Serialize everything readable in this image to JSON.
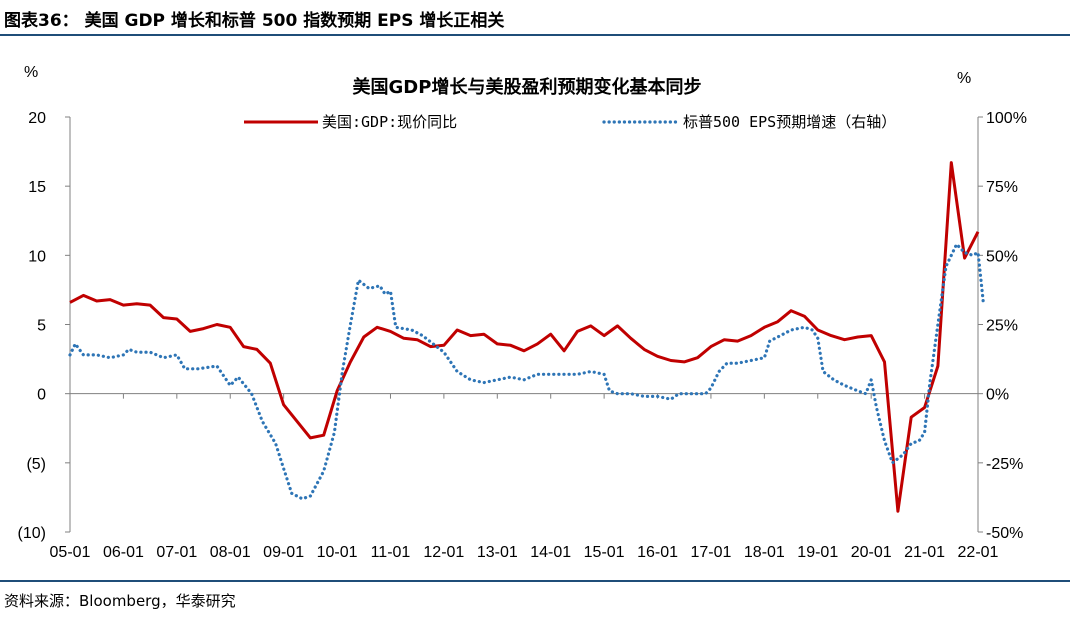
{
  "figure_header": "图表36： 美国 GDP 增长和标普 500 指数预期 EPS 增长正相关",
  "source_note": "资料来源：Bloomberg，华泰研究",
  "chart_data": {
    "type": "line",
    "title": "美国GDP增长与美股盈利预期变化基本同步",
    "left_unit": "%",
    "right_unit": "%",
    "left_axis": {
      "ylim": [
        -10,
        20
      ],
      "ticks": [
        20,
        15,
        10,
        5,
        0,
        -5,
        -10
      ],
      "tick_labels": [
        "20",
        "15",
        "10",
        "5",
        "0",
        "(5)",
        "(10)"
      ]
    },
    "right_axis": {
      "ylim": [
        -50,
        100
      ],
      "ticks": [
        100,
        75,
        50,
        25,
        0,
        -25,
        -50
      ],
      "tick_labels": [
        "100%",
        "75%",
        "50%",
        "25%",
        "0%",
        "-25%",
        "-50%"
      ]
    },
    "x_axis": {
      "range": [
        2005.0,
        2022.0
      ],
      "ticks": [
        2005,
        2006,
        2007,
        2008,
        2009,
        2010,
        2011,
        2012,
        2013,
        2014,
        2015,
        2016,
        2017,
        2018,
        2019,
        2020,
        2021,
        2022
      ],
      "tick_labels": [
        "05-01",
        "06-01",
        "07-01",
        "08-01",
        "09-01",
        "10-01",
        "11-01",
        "12-01",
        "13-01",
        "14-01",
        "15-01",
        "16-01",
        "17-01",
        "18-01",
        "19-01",
        "20-01",
        "21-01",
        "22-01"
      ]
    },
    "legend_position": "top",
    "series": [
      {
        "name": "美国:GDP:现价同比",
        "axis": "left",
        "color": "#c00000",
        "style": "solid",
        "points": [
          [
            2005.0,
            6.6
          ],
          [
            2005.25,
            7.1
          ],
          [
            2005.5,
            6.7
          ],
          [
            2005.75,
            6.8
          ],
          [
            2006.0,
            6.4
          ],
          [
            2006.25,
            6.5
          ],
          [
            2006.5,
            6.4
          ],
          [
            2006.75,
            5.5
          ],
          [
            2007.0,
            5.4
          ],
          [
            2007.25,
            4.5
          ],
          [
            2007.5,
            4.7
          ],
          [
            2007.75,
            5.0
          ],
          [
            2008.0,
            4.8
          ],
          [
            2008.25,
            3.4
          ],
          [
            2008.5,
            3.2
          ],
          [
            2008.75,
            2.2
          ],
          [
            2009.0,
            -0.8
          ],
          [
            2009.25,
            -2.0
          ],
          [
            2009.5,
            -3.2
          ],
          [
            2009.75,
            -3.0
          ],
          [
            2010.0,
            0.2
          ],
          [
            2010.25,
            2.3
          ],
          [
            2010.5,
            4.1
          ],
          [
            2010.75,
            4.8
          ],
          [
            2011.0,
            4.5
          ],
          [
            2011.25,
            4.0
          ],
          [
            2011.5,
            3.9
          ],
          [
            2011.75,
            3.4
          ],
          [
            2012.0,
            3.5
          ],
          [
            2012.25,
            4.6
          ],
          [
            2012.5,
            4.2
          ],
          [
            2012.75,
            4.3
          ],
          [
            2013.0,
            3.6
          ],
          [
            2013.25,
            3.5
          ],
          [
            2013.5,
            3.1
          ],
          [
            2013.75,
            3.6
          ],
          [
            2014.0,
            4.3
          ],
          [
            2014.25,
            3.1
          ],
          [
            2014.5,
            4.5
          ],
          [
            2014.75,
            4.9
          ],
          [
            2015.0,
            4.2
          ],
          [
            2015.25,
            4.9
          ],
          [
            2015.5,
            4.0
          ],
          [
            2015.75,
            3.2
          ],
          [
            2016.0,
            2.7
          ],
          [
            2016.25,
            2.4
          ],
          [
            2016.5,
            2.3
          ],
          [
            2016.75,
            2.6
          ],
          [
            2017.0,
            3.4
          ],
          [
            2017.25,
            3.9
          ],
          [
            2017.5,
            3.8
          ],
          [
            2017.75,
            4.2
          ],
          [
            2018.0,
            4.8
          ],
          [
            2018.25,
            5.2
          ],
          [
            2018.5,
            6.0
          ],
          [
            2018.75,
            5.6
          ],
          [
            2019.0,
            4.6
          ],
          [
            2019.25,
            4.2
          ],
          [
            2019.5,
            3.9
          ],
          [
            2019.75,
            4.1
          ],
          [
            2020.0,
            4.2
          ],
          [
            2020.25,
            2.3
          ],
          [
            2020.5,
            -8.5
          ],
          [
            2020.75,
            -1.7
          ],
          [
            2021.0,
            -1.0
          ],
          [
            2021.25,
            2.0
          ],
          [
            2021.5,
            16.7
          ],
          [
            2021.75,
            9.8
          ],
          [
            2022.0,
            11.7
          ]
        ]
      },
      {
        "name": "标普500 EPS预期增速（右轴）",
        "axis": "right",
        "color": "#2e75b6",
        "style": "dotted",
        "points": [
          [
            2005.0,
            14
          ],
          [
            2005.1,
            18
          ],
          [
            2005.25,
            14
          ],
          [
            2005.5,
            14
          ],
          [
            2005.75,
            13
          ],
          [
            2006.0,
            14
          ],
          [
            2006.1,
            16
          ],
          [
            2006.25,
            15
          ],
          [
            2006.5,
            15
          ],
          [
            2006.75,
            13
          ],
          [
            2007.0,
            14
          ],
          [
            2007.15,
            9
          ],
          [
            2007.4,
            9
          ],
          [
            2007.75,
            10
          ],
          [
            2008.0,
            3
          ],
          [
            2008.15,
            6
          ],
          [
            2008.4,
            0
          ],
          [
            2008.6,
            -10
          ],
          [
            2008.85,
            -18
          ],
          [
            2009.0,
            -27
          ],
          [
            2009.15,
            -36
          ],
          [
            2009.35,
            -38
          ],
          [
            2009.5,
            -37
          ],
          [
            2009.75,
            -28
          ],
          [
            2009.95,
            -14
          ],
          [
            2010.1,
            8
          ],
          [
            2010.25,
            25
          ],
          [
            2010.4,
            41
          ],
          [
            2010.6,
            38
          ],
          [
            2010.8,
            39
          ],
          [
            2010.9,
            36
          ],
          [
            2011.0,
            37
          ],
          [
            2011.1,
            24
          ],
          [
            2011.4,
            23
          ],
          [
            2011.6,
            21
          ],
          [
            2011.8,
            18
          ],
          [
            2012.0,
            15
          ],
          [
            2012.25,
            8
          ],
          [
            2012.5,
            5
          ],
          [
            2012.75,
            4
          ],
          [
            2013.0,
            5
          ],
          [
            2013.25,
            6
          ],
          [
            2013.5,
            5
          ],
          [
            2013.75,
            7
          ],
          [
            2014.0,
            7
          ],
          [
            2014.25,
            7
          ],
          [
            2014.5,
            7
          ],
          [
            2014.75,
            8
          ],
          [
            2015.0,
            7
          ],
          [
            2015.1,
            1
          ],
          [
            2015.25,
            0
          ],
          [
            2015.5,
            0
          ],
          [
            2015.75,
            -1
          ],
          [
            2016.0,
            -1
          ],
          [
            2016.25,
            -2
          ],
          [
            2016.4,
            0
          ],
          [
            2016.6,
            0
          ],
          [
            2016.75,
            0
          ],
          [
            2016.9,
            0
          ],
          [
            2017.0,
            2
          ],
          [
            2017.15,
            8
          ],
          [
            2017.3,
            11
          ],
          [
            2017.5,
            11
          ],
          [
            2017.75,
            12
          ],
          [
            2018.0,
            13
          ],
          [
            2018.1,
            19
          ],
          [
            2018.3,
            21
          ],
          [
            2018.5,
            23
          ],
          [
            2018.75,
            24
          ],
          [
            2018.9,
            23
          ],
          [
            2019.0,
            20
          ],
          [
            2019.1,
            8
          ],
          [
            2019.3,
            5
          ],
          [
            2019.5,
            3
          ],
          [
            2019.75,
            1
          ],
          [
            2019.9,
            0
          ],
          [
            2020.0,
            5
          ],
          [
            2020.1,
            -5
          ],
          [
            2020.25,
            -17
          ],
          [
            2020.4,
            -25
          ],
          [
            2020.6,
            -22
          ],
          [
            2020.75,
            -18
          ],
          [
            2020.9,
            -17
          ],
          [
            2021.0,
            -14
          ],
          [
            2021.1,
            4
          ],
          [
            2021.25,
            25
          ],
          [
            2021.4,
            46
          ],
          [
            2021.6,
            54
          ],
          [
            2021.75,
            51
          ],
          [
            2021.9,
            50
          ],
          [
            2022.0,
            51
          ],
          [
            2022.05,
            42
          ],
          [
            2022.1,
            33
          ]
        ]
      }
    ]
  }
}
